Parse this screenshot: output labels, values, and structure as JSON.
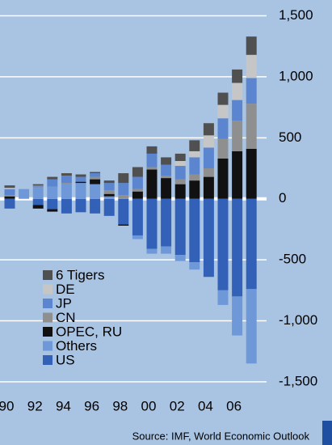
{
  "chart_data": {
    "type": "stacked_bar",
    "categories": [
      "90",
      null,
      "92",
      null,
      "94",
      null,
      "96",
      null,
      "98",
      null,
      "00",
      null,
      "02",
      null,
      "04",
      null,
      "06",
      null
    ],
    "series": [
      {
        "name": "US",
        "color": "#3461b8",
        "values": [
          -80,
          0,
          -50,
          -85,
          -120,
          -110,
          -120,
          -140,
          -210,
          -300,
          -410,
          -390,
          -460,
          -520,
          -640,
          -750,
          -800,
          -740
        ]
      },
      {
        "name": "Others",
        "color": "#6f98d8",
        "values": [
          0,
          80,
          90,
          100,
          120,
          130,
          120,
          20,
          0,
          -30,
          -40,
          -60,
          -50,
          -60,
          0,
          -120,
          -320,
          -610
        ]
      },
      {
        "name": "OPEC, RU",
        "color": "#111111",
        "values": [
          20,
          0,
          -30,
          -20,
          0,
          10,
          40,
          20,
          -10,
          60,
          240,
          170,
          120,
          150,
          180,
          330,
          390,
          410
        ]
      },
      {
        "name": "CN",
        "color": "#8f8f8f",
        "values": [
          10,
          0,
          10,
          0,
          10,
          0,
          20,
          30,
          30,
          20,
          20,
          20,
          40,
          50,
          70,
          160,
          250,
          370
        ]
      },
      {
        "name": "JP",
        "color": "#5b86cf",
        "values": [
          50,
          0,
          10,
          60,
          60,
          40,
          30,
          60,
          100,
          100,
          110,
          90,
          110,
          140,
          170,
          170,
          170,
          210
        ]
      },
      {
        "name": "DE",
        "color": "#c6c6c6",
        "values": [
          10,
          0,
          0,
          0,
          0,
          0,
          0,
          0,
          0,
          0,
          0,
          0,
          40,
          50,
          100,
          110,
          140,
          190
        ]
      },
      {
        "name": "6 Tigers",
        "color": "#505050",
        "values": [
          20,
          0,
          10,
          20,
          20,
          20,
          10,
          20,
          80,
          80,
          60,
          60,
          60,
          90,
          100,
          100,
          110,
          150
        ]
      }
    ],
    "ylim": [
      -1600,
      1550
    ],
    "yticks": [
      {
        "value": 1500,
        "label": "1,500"
      },
      {
        "value": 1000,
        "label": "1,000"
      },
      500,
      0,
      -500,
      {
        "value": -1000,
        "label": "-1,000"
      },
      {
        "value": -1500,
        "label": "-1,500"
      }
    ],
    "grid": true,
    "legend": "bottom-left",
    "source": "Source: IMF, World Economic Outlook"
  }
}
